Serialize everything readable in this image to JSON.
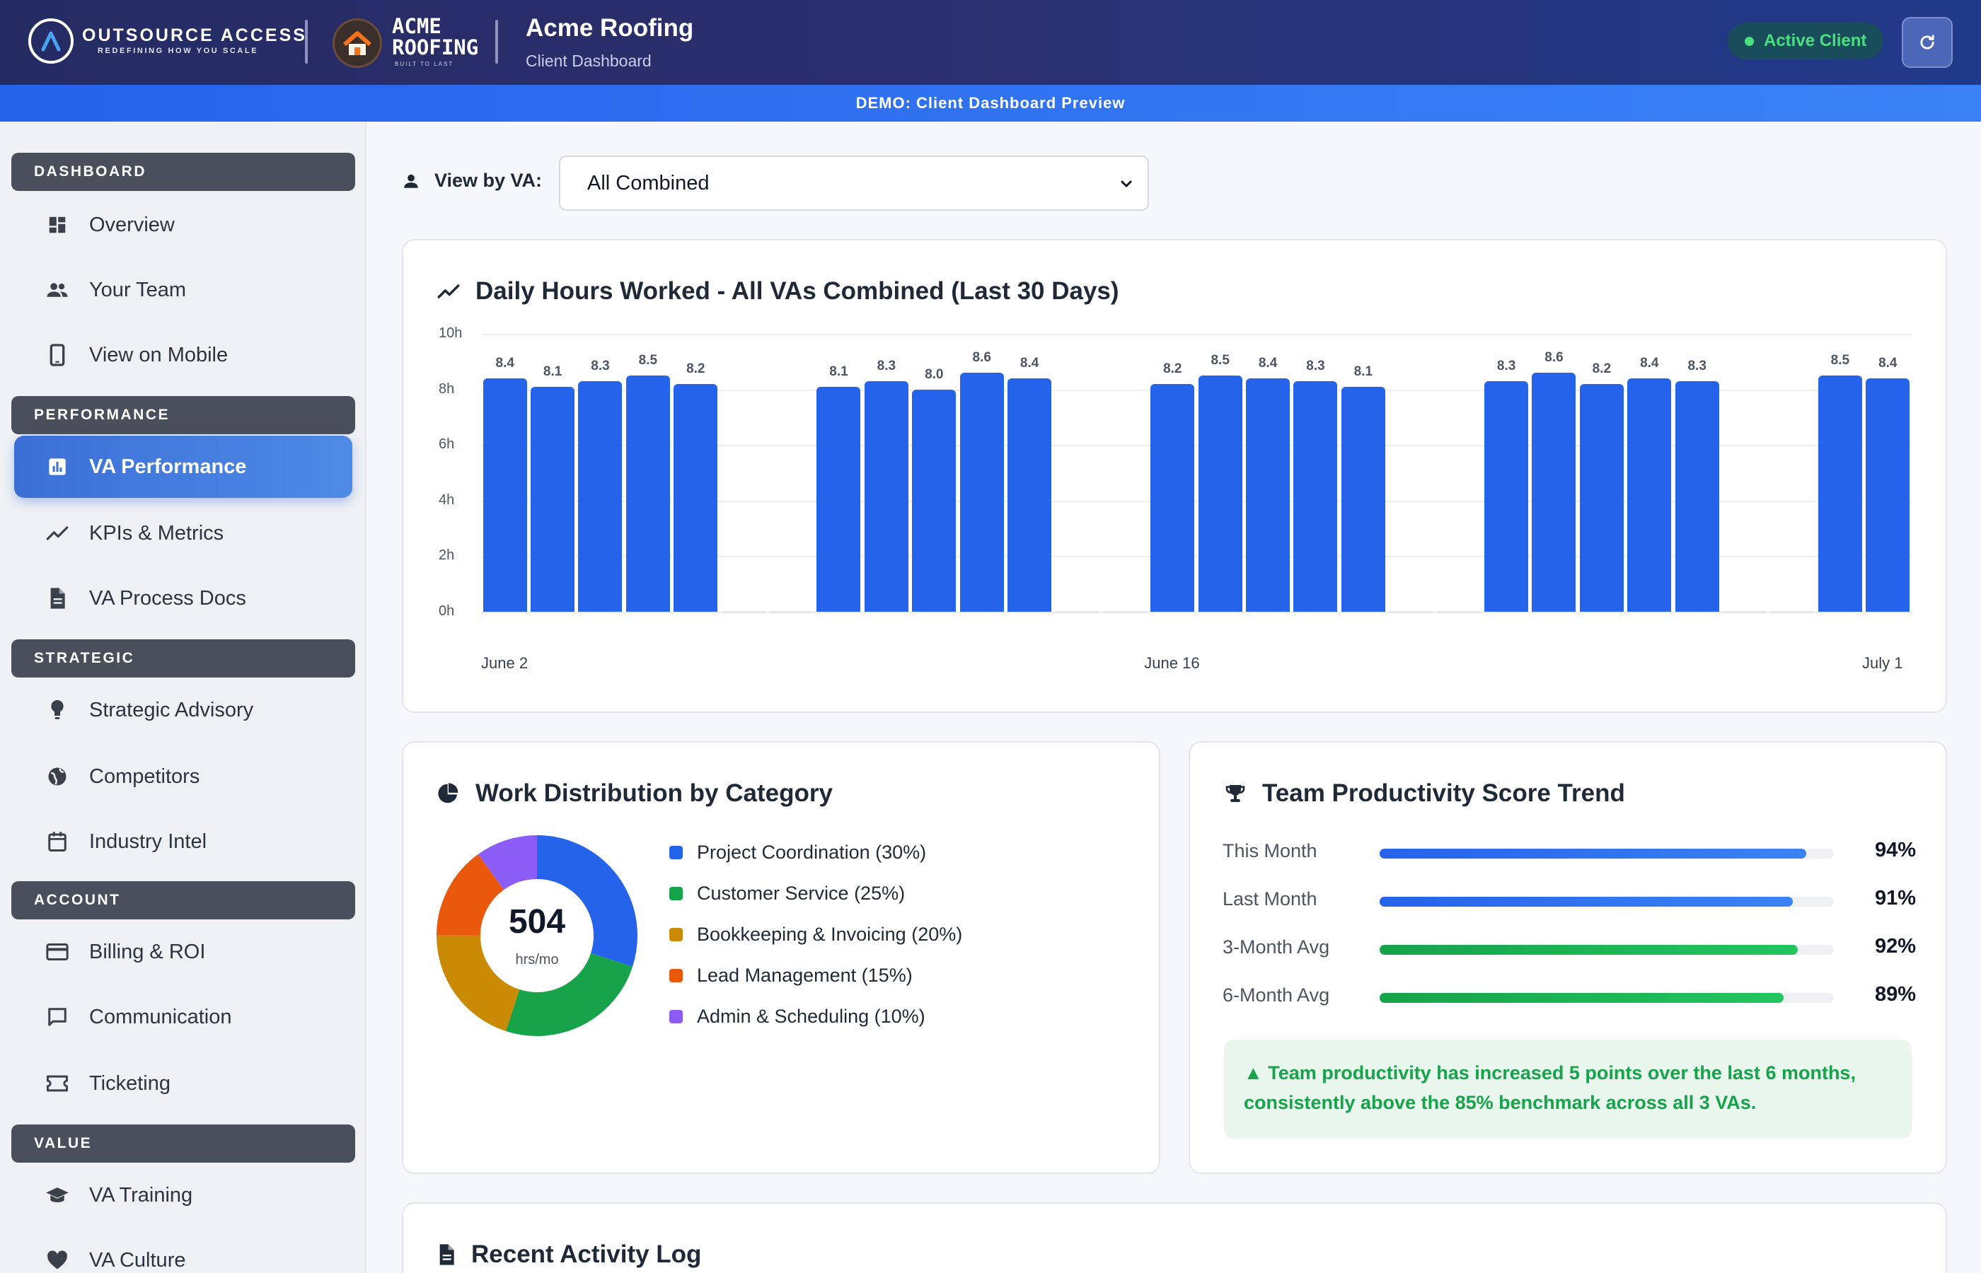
{
  "header": {
    "brand_name": "OUTSOURCE ACCESS",
    "brand_tagline": "REDEFINING HOW YOU SCALE",
    "client_logo_line1": "ACME",
    "client_logo_line2": "ROOFING",
    "client_logo_tag": "BUILT TO LAST",
    "client_name": "Acme Roofing",
    "client_subtitle": "Client Dashboard",
    "status_label": "Active Client",
    "status_color": "#4ade80"
  },
  "demo_banner": "DEMO: Client Dashboard Preview",
  "sidebar": {
    "sections": [
      {
        "title": "DASHBOARD",
        "items": [
          {
            "label": "Overview",
            "icon": "dashboard-icon"
          },
          {
            "label": "Your Team",
            "icon": "people-icon"
          },
          {
            "label": "View on Mobile",
            "icon": "mobile-icon"
          }
        ]
      },
      {
        "title": "PERFORMANCE",
        "items": [
          {
            "label": "VA Performance",
            "icon": "bar-chart-icon",
            "active": true
          },
          {
            "label": "KPIs & Metrics",
            "icon": "trend-icon"
          },
          {
            "label": "VA Process Docs",
            "icon": "document-icon"
          }
        ]
      },
      {
        "title": "STRATEGIC",
        "items": [
          {
            "label": "Strategic Advisory",
            "icon": "lightbulb-icon"
          },
          {
            "label": "Competitors",
            "icon": "globe-icon"
          },
          {
            "label": "Industry Intel",
            "icon": "calendar-icon"
          }
        ]
      },
      {
        "title": "ACCOUNT",
        "items": [
          {
            "label": "Billing & ROI",
            "icon": "credit-card-icon"
          },
          {
            "label": "Communication",
            "icon": "chat-icon"
          },
          {
            "label": "Ticketing",
            "icon": "ticket-icon"
          }
        ]
      },
      {
        "title": "VALUE",
        "items": [
          {
            "label": "VA Training",
            "icon": "graduation-cap-icon"
          },
          {
            "label": "VA Culture",
            "icon": "heart-icon"
          }
        ]
      }
    ]
  },
  "filter": {
    "label": "View by VA:",
    "selected": "All Combined"
  },
  "hours_card": {
    "title": "Daily Hours Worked - All VAs Combined (Last 30 Days)"
  },
  "chart_data": [
    {
      "type": "bar",
      "title": "Daily Hours Worked - All VAs Combined (Last 30 Days)",
      "ylim": [
        0,
        10
      ],
      "yticks": [
        "0h",
        "2h",
        "4h",
        "6h",
        "8h",
        "10h"
      ],
      "xtick_labels": [
        "June 2",
        "June 16",
        "July 1"
      ],
      "values": [
        8.4,
        8.1,
        8.3,
        8.5,
        8.2,
        0,
        0,
        8.1,
        8.3,
        8.0,
        8.6,
        8.4,
        0,
        0,
        8.2,
        8.5,
        8.4,
        8.3,
        8.1,
        0,
        0,
        8.3,
        8.6,
        8.2,
        8.4,
        8.3,
        0,
        0,
        8.5,
        8.4
      ],
      "color": "#2563eb",
      "grid": true
    },
    {
      "type": "pie",
      "title": "Work Distribution by Category",
      "center_value": "504",
      "center_unit": "hrs/mo",
      "slices": [
        {
          "label": "Project Coordination (30%)",
          "value": 30,
          "color": "#2563eb"
        },
        {
          "label": "Customer Service (25%)",
          "value": 25,
          "color": "#16a34a"
        },
        {
          "label": "Bookkeeping & Invoicing (20%)",
          "value": 20,
          "color": "#ca8a04"
        },
        {
          "label": "Lead Management (15%)",
          "value": 15,
          "color": "#ea580c"
        },
        {
          "label": "Admin & Scheduling (10%)",
          "value": 10,
          "color": "#8b5cf6"
        }
      ]
    }
  ],
  "productivity": {
    "title": "Team Productivity Score Trend",
    "rows": [
      {
        "label": "This Month",
        "value": "94%",
        "fraction": 0.94,
        "color": "#2563eb"
      },
      {
        "label": "Last Month",
        "value": "91%",
        "fraction": 0.91,
        "color": "#2563eb"
      },
      {
        "label": "3-Month Avg",
        "value": "92%",
        "fraction": 0.92,
        "color": "#16a34a"
      },
      {
        "label": "6-Month Avg",
        "value": "89%",
        "fraction": 0.89,
        "color": "#16a34a"
      }
    ],
    "insight": "▲ Team productivity has increased 5 points over the last 6 months, consistently above the 85% benchmark across all 3 VAs."
  },
  "activity_card": {
    "title": "Recent Activity Log"
  }
}
